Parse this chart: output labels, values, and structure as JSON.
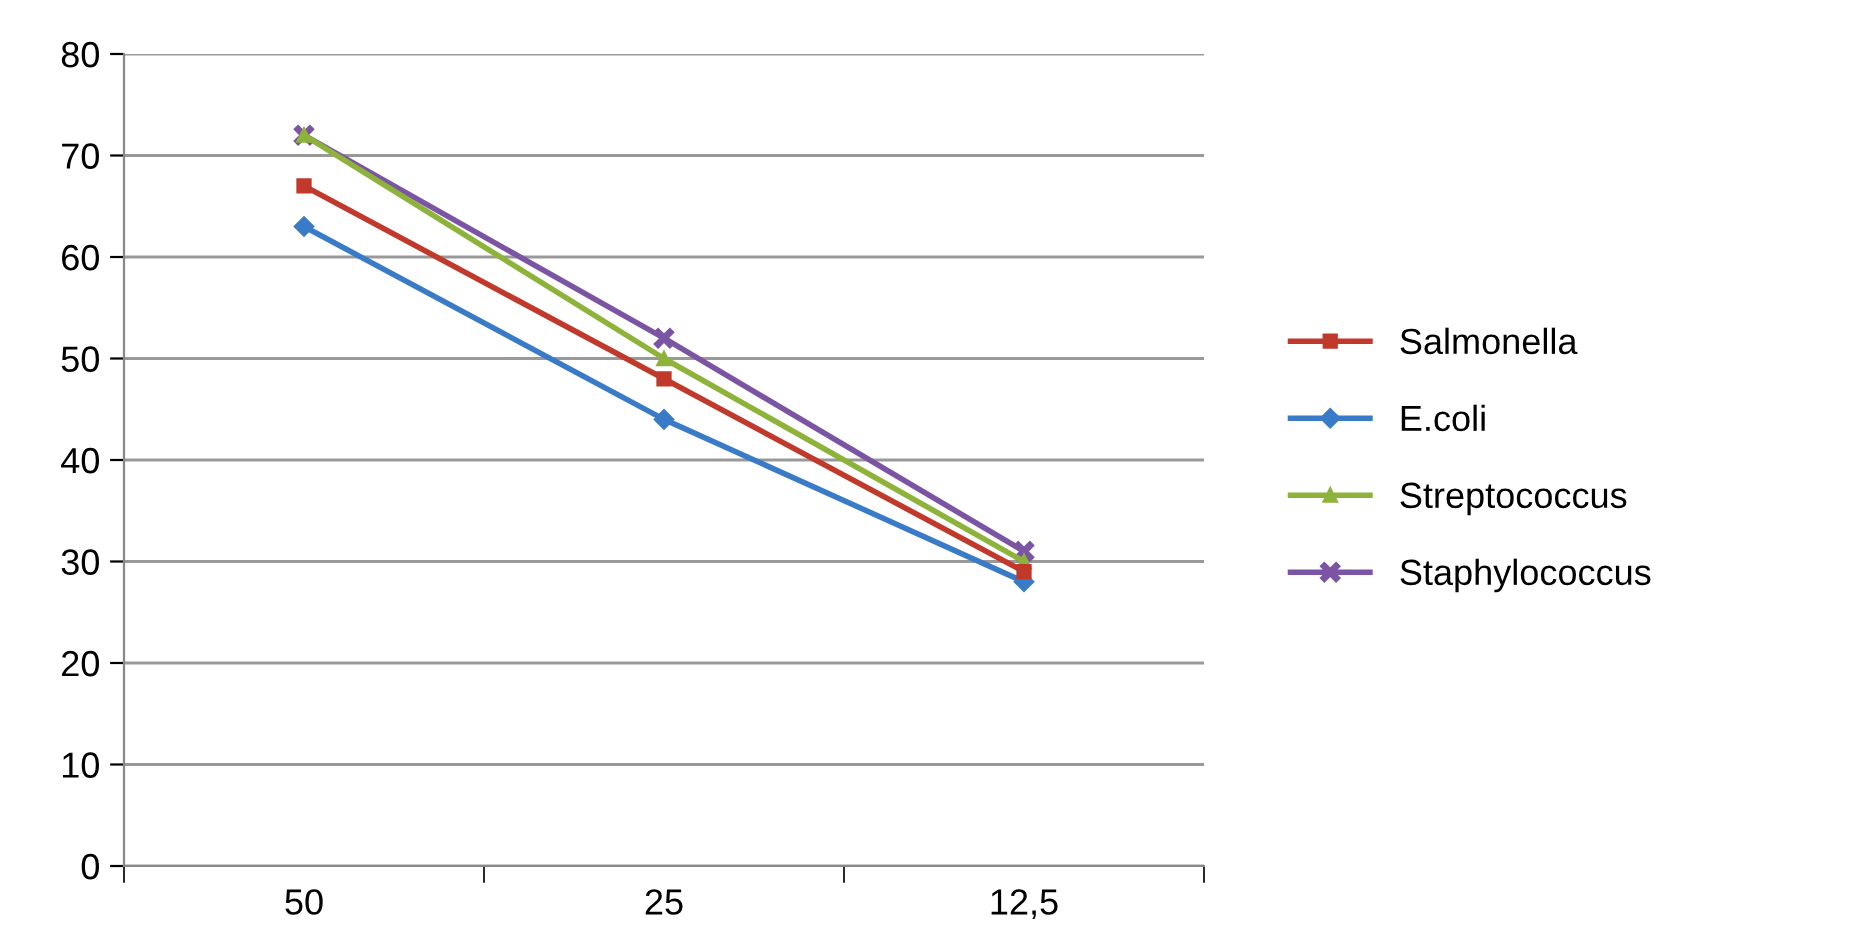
{
  "chart_data": {
    "type": "line",
    "categories": [
      "50",
      "25",
      "12,5"
    ],
    "ylim": [
      0,
      80
    ],
    "yticks": [
      0,
      10,
      20,
      30,
      40,
      50,
      60,
      70,
      80
    ],
    "grid": "y",
    "legend": "right",
    "series": [
      {
        "name": "Salmonella",
        "color": "#c0392b",
        "marker": "square",
        "values": [
          67,
          48,
          29
        ]
      },
      {
        "name": "E.coli",
        "color": "#3a7bc8",
        "marker": "diamond",
        "values": [
          63,
          44,
          28
        ]
      },
      {
        "name": "Streptococcus",
        "color": "#8db33a",
        "marker": "triangle",
        "values": [
          72,
          50,
          30
        ]
      },
      {
        "name": "Staphylococcus",
        "color": "#7b55a3",
        "marker": "cross",
        "values": [
          72,
          52,
          31
        ]
      }
    ]
  }
}
